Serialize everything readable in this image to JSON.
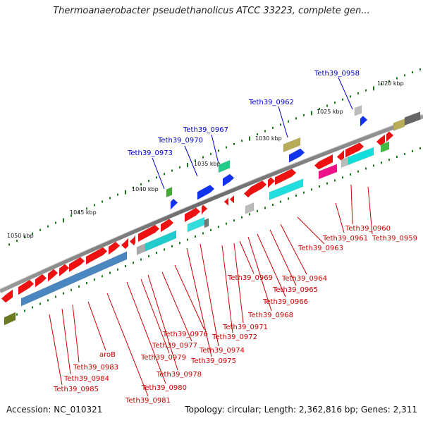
{
  "title": "Thermoanaerobacter pseudethanolicus ATCC 33223, complete gen...",
  "footer": {
    "accession": "Accession: NC_010321",
    "topology": "Topology: circular; Length: 2,362,816 bp; Genes: 2,311"
  },
  "colors": {
    "backbone": "#777777",
    "highlight_label": "#0000cc",
    "other_label": "#cc0000",
    "tick": "#1a7a1a"
  },
  "kbp_labels": [
    "1020 kbp",
    "1025 kbp",
    "1030 kbp",
    "1035 kbp",
    "1040 kbp",
    "1045 kbp",
    "1050 kbp"
  ],
  "blue_labels": [
    "Teth39_0958",
    "Teth39_0962",
    "Teth39_0967",
    "Teth39_0970",
    "Teth39_0973"
  ],
  "red_labels": [
    "Teth39_0959",
    "Teth39_0960",
    "Teth39_0961",
    "Teth39_0963",
    "Teth39_0964",
    "Teth39_0965",
    "Teth39_0966",
    "Teth39_0968",
    "Teth39_0969",
    "Teth39_0971",
    "Teth39_0972",
    "Teth39_0974",
    "Teth39_0975",
    "Teth39_0976",
    "Teth39_0977",
    "Teth39_0978",
    "Teth39_0979",
    "Teth39_0980",
    "Teth39_0981",
    "aroB",
    "Teth39_0983",
    "Teth39_0984",
    "Teth39_0985"
  ]
}
